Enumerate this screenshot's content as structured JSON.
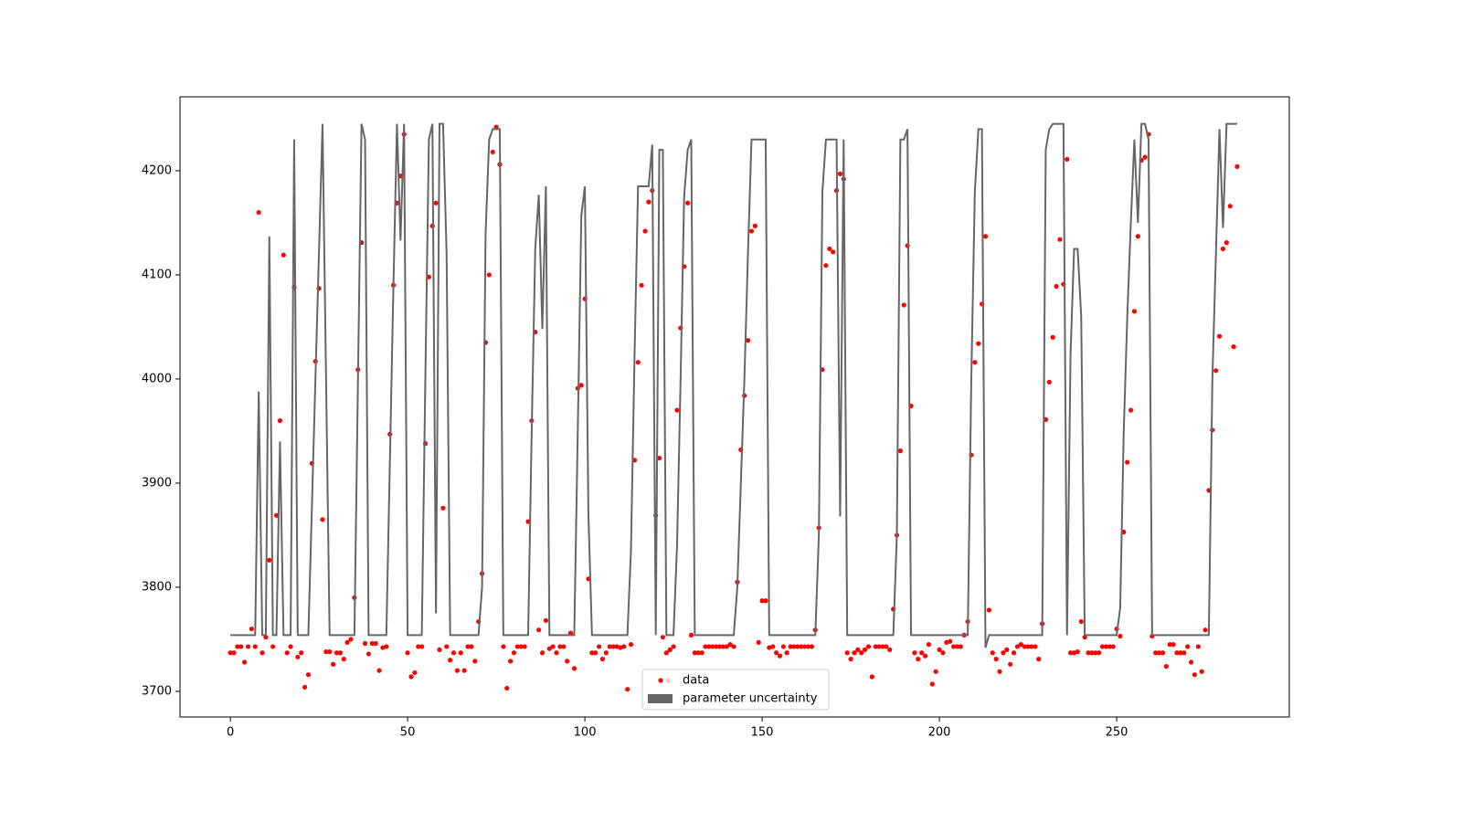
{
  "chart_data": {
    "type": "line",
    "x": [
      0,
      1,
      2,
      3,
      4,
      5,
      6,
      7,
      8,
      9,
      10,
      11,
      12,
      13,
      14,
      15,
      16,
      17,
      18,
      19,
      20,
      21,
      22,
      23,
      24,
      25,
      26,
      27,
      28,
      29,
      30,
      31,
      32,
      33,
      34,
      35,
      36,
      37,
      38,
      39,
      40,
      41,
      42,
      43,
      44,
      45,
      46,
      47,
      48,
      49,
      50,
      51,
      52,
      53,
      54,
      55,
      56,
      57,
      58,
      59,
      60,
      61,
      62,
      63,
      64,
      65,
      66,
      67,
      68,
      69,
      70,
      71,
      72,
      73,
      74,
      75,
      76,
      77,
      78,
      79,
      80,
      81,
      82,
      83,
      84,
      85,
      86,
      87,
      88,
      89,
      90,
      91,
      92,
      93,
      94,
      95,
      96,
      97,
      98,
      99,
      100,
      101,
      102,
      103,
      104,
      105,
      106,
      107,
      108,
      109,
      110,
      111,
      112,
      113,
      114,
      115,
      116,
      117,
      118,
      119,
      120,
      121,
      122,
      123,
      124,
      125,
      126,
      127,
      128,
      129,
      130,
      131,
      132,
      133,
      134,
      135,
      136,
      137,
      138,
      139,
      140,
      141,
      142,
      143,
      144,
      145,
      146,
      147,
      148,
      149,
      150,
      151,
      152,
      153,
      154,
      155,
      156,
      157,
      158,
      159,
      160,
      161,
      162,
      163,
      164,
      165,
      166,
      167,
      168,
      169,
      170,
      171,
      172,
      173,
      174,
      175,
      176,
      177,
      178,
      179,
      180,
      181,
      182,
      183,
      184,
      185,
      186,
      187,
      188,
      189,
      190,
      191,
      192,
      193,
      194,
      195,
      196,
      197,
      198,
      199,
      200,
      201,
      202,
      203,
      204,
      205,
      206,
      207,
      208,
      209,
      210,
      211,
      212,
      213,
      214,
      215,
      216,
      217,
      218,
      219,
      220,
      221,
      222,
      223,
      224,
      225,
      226,
      227,
      228,
      229,
      230,
      231,
      232,
      233,
      234,
      235,
      236,
      237,
      238,
      239,
      240,
      241,
      242,
      243,
      244,
      245,
      246,
      247,
      248,
      249,
      250,
      251,
      252,
      253,
      254,
      255,
      256,
      257,
      258,
      259,
      260,
      261,
      262,
      263,
      264,
      265,
      266,
      267,
      268,
      269,
      270,
      271,
      272,
      273,
      274,
      275,
      276,
      277,
      278,
      279,
      280,
      281,
      282,
      283,
      284
    ],
    "series": [
      {
        "name": "data",
        "type": "scatter",
        "color": "#ff0000",
        "values": [
          3737,
          3737,
          3743,
          3743,
          3728,
          3743,
          3760,
          3743,
          4160,
          3737,
          3752,
          3826,
          3743,
          3869,
          3960,
          4119,
          3737,
          3743,
          4088,
          3733,
          3737,
          3704,
          3716,
          3919,
          4017,
          4087,
          3865,
          3738,
          3738,
          3726,
          3737,
          3737,
          3731,
          3747,
          3750,
          3790,
          4009,
          4131,
          3746,
          3736,
          3746,
          3746,
          3720,
          3742,
          3743,
          3947,
          4090,
          4169,
          4195,
          4235,
          3737,
          3714,
          3718,
          3743,
          3743,
          3938,
          4098,
          4147,
          4169,
          3740,
          3876,
          3743,
          3730,
          3737,
          3720,
          3737,
          3720,
          3743,
          3743,
          3729,
          3767,
          3813,
          4035,
          4100,
          4218,
          4242,
          4206,
          3743,
          3703,
          3729,
          3737,
          3743,
          3743,
          3743,
          3863,
          3960,
          4045,
          3759,
          3737,
          3768,
          3741,
          3743,
          3737,
          3743,
          3743,
          3729,
          3756,
          3722,
          3991,
          3994,
          4077,
          3808,
          3737,
          3737,
          3743,
          3731,
          3737,
          3743,
          3743,
          3743,
          3742,
          3743,
          3702,
          3745,
          3922,
          4016,
          4090,
          4142,
          4170,
          4181,
          3869,
          3924,
          3752,
          3737,
          3740,
          3743,
          3970,
          4049,
          4108,
          4169,
          3754,
          3737,
          3737,
          3737,
          3743,
          3743,
          3743,
          3743,
          3743,
          3743,
          3743,
          3745,
          3743,
          3805,
          3932,
          3984,
          4037,
          4142,
          4147,
          3747,
          3787,
          3787,
          3742,
          3743,
          3737,
          3734,
          3743,
          3737,
          3743,
          3743,
          3743,
          3743,
          3743,
          3743,
          3743,
          3759,
          3857,
          4009,
          4109,
          4125,
          4122,
          4181,
          4197,
          4192,
          3737,
          3731,
          3737,
          3740,
          3737,
          3740,
          3743,
          3714,
          3743,
          3743,
          3743,
          3743,
          3740,
          3779,
          3850,
          3931,
          4071,
          4128,
          3974,
          3737,
          3731,
          3737,
          3734,
          3745,
          3707,
          3719,
          3740,
          3737,
          3747,
          3748,
          3743,
          3743,
          3743,
          3754,
          3767,
          3927,
          4016,
          4034,
          4072,
          4137,
          3778,
          3737,
          3731,
          3719,
          3737,
          3740,
          3726,
          3737,
          3743,
          3745,
          3743,
          3743,
          3743,
          3743,
          3731,
          3765,
          3961,
          3997,
          4040,
          4089,
          4134,
          4091,
          4211,
          3737,
          3737,
          3738,
          3767,
          3752,
          3737,
          3737,
          3737,
          3737,
          3743,
          3743,
          3743,
          3743,
          3760,
          3753,
          3853,
          3920,
          3970,
          4065,
          4137,
          4210,
          4213,
          4235,
          3753,
          3737,
          3737,
          3737,
          3724,
          3745,
          3745,
          3737,
          3737,
          3737,
          3743,
          3728,
          3716,
          3743,
          3719,
          3759,
          3893,
          3951,
          4008,
          4041,
          4125,
          4131,
          4166,
          4031,
          4204
        ]
      },
      {
        "name": "parameter uncertainty",
        "type": "line",
        "color": "#666666",
        "values": [
          3754,
          3754,
          3754,
          3754,
          3754,
          3754,
          3754,
          3754,
          3988,
          3754,
          3754,
          4137,
          3754,
          3754,
          3940,
          3754,
          3754,
          3754,
          4230,
          3754,
          3754,
          3754,
          3754,
          3877,
          4000,
          4122,
          4245,
          4000,
          3754,
          3754,
          3754,
          3754,
          3754,
          3754,
          3754,
          3754,
          4000,
          4245,
          4230,
          3754,
          3754,
          3754,
          3754,
          3754,
          3754,
          3920,
          4090,
          4245,
          4133,
          4245,
          3754,
          3754,
          3754,
          3754,
          3754,
          4000,
          4230,
          4245,
          3775,
          4245,
          4245,
          4120,
          3754,
          3754,
          3754,
          3754,
          3754,
          3754,
          3754,
          3754,
          3754,
          3800,
          4140,
          4230,
          4240,
          4240,
          4240,
          3754,
          3754,
          3754,
          3754,
          3754,
          3754,
          3754,
          3754,
          3950,
          4125,
          4177,
          4048,
          4185,
          3754,
          3754,
          3754,
          3754,
          3754,
          3754,
          3754,
          3754,
          3950,
          4157,
          4185,
          3870,
          3754,
          3754,
          3754,
          3754,
          3754,
          3754,
          3754,
          3754,
          3754,
          3754,
          3754,
          3835,
          4020,
          4185,
          4185,
          4185,
          4185,
          4225,
          3754,
          4220,
          4220,
          3754,
          3754,
          3754,
          3840,
          4000,
          4175,
          4220,
          4230,
          3754,
          3754,
          3754,
          3754,
          3754,
          3754,
          3754,
          3754,
          3754,
          3754,
          3754,
          3754,
          3800,
          3900,
          4000,
          4120,
          4230,
          4230,
          4230,
          4230,
          4230,
          3754,
          3754,
          3754,
          3754,
          3754,
          3754,
          3754,
          3754,
          3754,
          3754,
          3754,
          3754,
          3754,
          3754,
          3850,
          4180,
          4230,
          4230,
          4230,
          4230,
          3868,
          4230,
          3754,
          3754,
          3754,
          3754,
          3754,
          3754,
          3754,
          3754,
          3754,
          3754,
          3754,
          3754,
          3754,
          3754,
          3850,
          4230,
          4230,
          4240,
          3754,
          3754,
          3754,
          3754,
          3754,
          3754,
          3754,
          3754,
          3754,
          3754,
          3754,
          3754,
          3754,
          3754,
          3754,
          3754,
          3754,
          4000,
          4180,
          4240,
          4240,
          3742,
          3754,
          3754,
          3754,
          3754,
          3754,
          3754,
          3754,
          3754,
          3754,
          3754,
          3754,
          3754,
          3754,
          3754,
          3754,
          3754,
          4220,
          4240,
          4245,
          4245,
          4245,
          4245,
          3754,
          4025,
          4125,
          4125,
          4060,
          3754,
          3754,
          3754,
          3754,
          3754,
          3754,
          3754,
          3754,
          3754,
          3754,
          3780,
          3950,
          4060,
          4150,
          4230,
          4150,
          4245,
          4245,
          4230,
          3754,
          3754,
          3754,
          3754,
          3754,
          3754,
          3754,
          3754,
          3754,
          3754,
          3754,
          3754,
          3754,
          3754,
          3754,
          3754,
          3754,
          4000,
          4120,
          4240,
          4145,
          4245,
          4245,
          4245,
          4245
        ]
      }
    ],
    "xlim": [
      -14.2,
      298.7
    ],
    "ylim": [
      3675.4,
      4271
    ],
    "xticks": [
      0,
      50,
      100,
      150,
      200,
      250
    ],
    "yticks": [
      3700,
      3800,
      3900,
      4000,
      4100,
      4200
    ],
    "legend": "lower center"
  }
}
